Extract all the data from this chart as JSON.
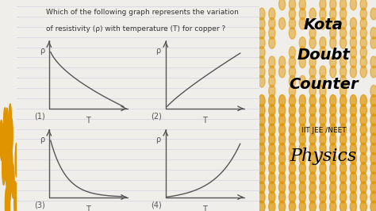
{
  "question_line1": "Which of the following graph represents the variation",
  "question_line2": "of resistivity (ρ) with temperature (T) for copper ?",
  "bg_notebook": "#f0eeeb",
  "bg_yellow": "#f5a800",
  "line_color": "#555555",
  "label_color": "#333333",
  "notebook_line_color": "#d0d4dc",
  "left_strip_color": "#f5a800",
  "graph_labels": [
    "(1)",
    "(2)",
    "(3)",
    "(4)"
  ],
  "axis_label_rho": "ρ",
  "axis_label_T": "T",
  "dot_color": "#e09500",
  "dot_bg": "#f5a800"
}
